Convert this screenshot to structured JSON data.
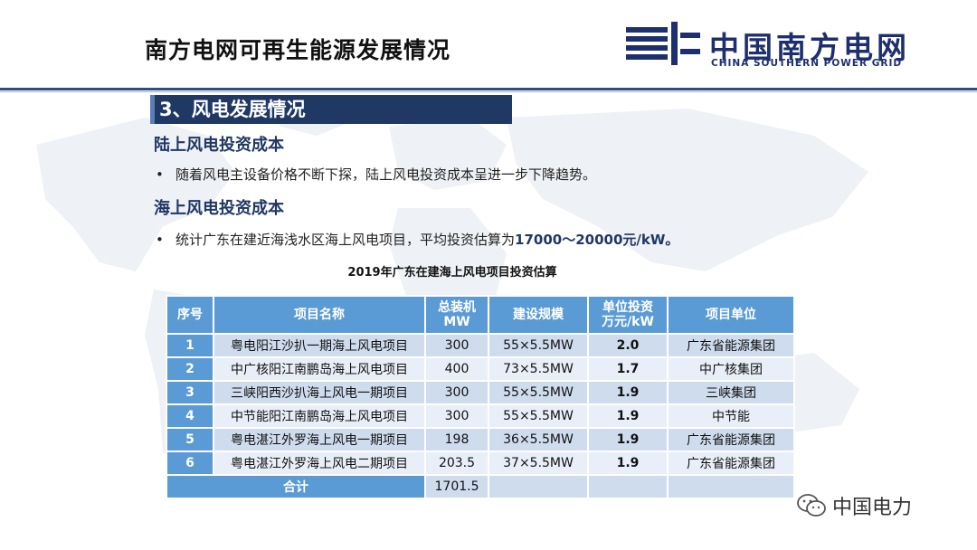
{
  "header": {
    "title": "南方电网可再生能源发展情况",
    "logo_cn": "中国南方电网",
    "logo_en": "CHINA SOUTHERN POWER GRID"
  },
  "section": {
    "banner": "3、风电发展情况"
  },
  "onshore": {
    "heading": "陆上风电投资成本",
    "bullet": "随着风电主设备价格不断下探，陆上风电投资成本呈进一步下降趋势。"
  },
  "offshore": {
    "heading": "海上风电投资成本",
    "bullet_prefix": "统计广东在建近海浅水区海上风电项目，平均投资估算为",
    "bullet_highlight": "17000～20000元/kW。"
  },
  "table": {
    "title": "2019年广东在建海上风电项目投资估算",
    "headers": [
      "序号",
      "项目名称",
      "总装机",
      "MW",
      "建设规模",
      "单位投资",
      "万元/kW",
      "项目单位"
    ],
    "rows": [
      {
        "no": "1",
        "name": "粤电阳江沙扒一期海上风电项目",
        "mw": "300",
        "scale": "55×5.5MW",
        "cost": "2.0",
        "unit": "广东省能源集团"
      },
      {
        "no": "2",
        "name": "中广核阳江南鹏岛海上风电项目",
        "mw": "400",
        "scale": "73×5.5MW",
        "cost": "1.7",
        "unit": "中广核集团"
      },
      {
        "no": "3",
        "name": "三峡阳西沙扒海上风电一期项目",
        "mw": "300",
        "scale": "55×5.5MW",
        "cost": "1.9",
        "unit": "三峡集团"
      },
      {
        "no": "4",
        "name": "中节能阳江南鹏岛海上风电项目",
        "mw": "300",
        "scale": "55×5.5MW",
        "cost": "1.9",
        "unit": "中节能"
      },
      {
        "no": "5",
        "name": "粤电湛江外罗海上风电一期项目",
        "mw": "198",
        "scale": "36×5.5MW",
        "cost": "1.9",
        "unit": "广东省能源集团"
      },
      {
        "no": "6",
        "name": "粤电湛江外罗海上风电二期项目",
        "mw": "203.5",
        "scale": "37×5.5MW",
        "cost": "1.9",
        "unit": "广东省能源集团"
      }
    ],
    "total_label": "合计",
    "total_mw": "1701.5"
  },
  "watermark": {
    "text": "中国电力"
  },
  "colors": {
    "navy": "#1f3864",
    "header_blue": "#5b9bd5",
    "row_dark": "#cfdcee",
    "row_light": "#e9eff8",
    "logo_blue": "#1d2f6e"
  }
}
